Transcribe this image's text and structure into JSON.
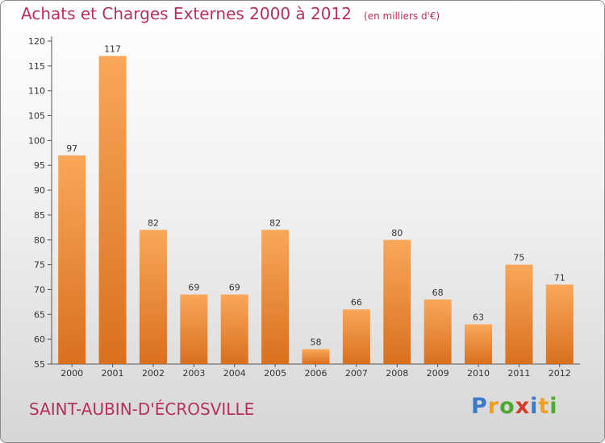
{
  "chart_data": {
    "type": "bar",
    "title": "Achats et Charges Externes 2000 à 2012",
    "subtitle": "(en milliers d'€)",
    "categories": [
      "2000",
      "2001",
      "2002",
      "2003",
      "2004",
      "2005",
      "2006",
      "2007",
      "2008",
      "2009",
      "2010",
      "2011",
      "2012"
    ],
    "values": [
      97,
      117,
      82,
      69,
      69,
      82,
      58,
      66,
      80,
      68,
      63,
      75,
      71
    ],
    "ylim": [
      55,
      120
    ],
    "yticks": [
      55,
      60,
      65,
      70,
      75,
      80,
      85,
      90,
      95,
      100,
      105,
      110,
      115,
      120
    ],
    "grid": false,
    "colors": {
      "bar_light": "#f9a75a",
      "bar_dark": "#d9701e",
      "text_accent": "#b4325a"
    }
  },
  "footer": {
    "commune": "SAINT-AUBIN-D'ÉCROSVILLE",
    "logo": "Proxiti"
  }
}
